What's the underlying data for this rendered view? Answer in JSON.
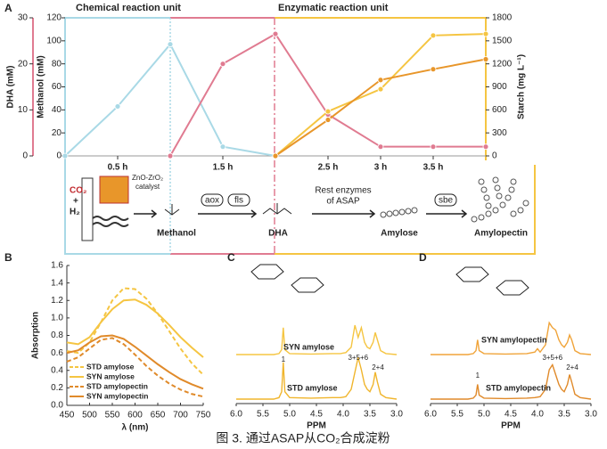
{
  "caption": "图 3. 通过ASAP从CO₂合成淀粉",
  "scheme": {
    "reactant_1": "CO₂",
    "plus": "+",
    "reactant_2": "H₂",
    "catalyst": "ZnO-ZrO₂",
    "catalyst_note": "catalyst",
    "methanol": "Methanol",
    "enzyme_1": "aox",
    "enzyme_2": "fls",
    "dha": "DHA",
    "rest_enzymes_1": "Rest enzymes",
    "rest_enzymes_2": "of ASAP",
    "amylose": "Amylose",
    "enzyme_3": "sbe",
    "amylopectin": "Amylopectin"
  },
  "chart_data": [
    {
      "type": "multiaxis",
      "panel": "A",
      "annotations": [
        "Chemical reaction unit",
        "Enzymatic reaction unit"
      ],
      "xlim": [
        0,
        4
      ],
      "xticks": [
        {
          "value": 0.5,
          "label": "0.5 h"
        },
        {
          "value": 1.5,
          "label": "1.5 h"
        },
        {
          "value": 2.5,
          "label": "2.5 h"
        },
        {
          "value": 3,
          "label": "3 h"
        },
        {
          "value": 3.5,
          "label": "3.5 h"
        }
      ],
      "ylabel": "Methanol (mM)",
      "ylim": [
        0,
        120
      ],
      "yticks": [
        0,
        20,
        40,
        60,
        80,
        100,
        120
      ],
      "y3label": "DHA (mM)",
      "y3lim": [
        0,
        30
      ],
      "y3ticks": [
        0,
        10,
        20,
        30
      ],
      "y2label": "Starch (mg L⁻¹)",
      "y2lim": [
        0,
        1800
      ],
      "y2ticks": [
        0,
        300,
        600,
        900,
        1200,
        1500,
        1800
      ],
      "series": [
        {
          "color": "#a9d9e6",
          "axis": "y",
          "x": [
            0,
            0.5,
            1,
            1.5,
            2
          ],
          "values": [
            0,
            43,
            97,
            8,
            0
          ]
        },
        {
          "color": "#e07b91",
          "axis": "y3",
          "x": [
            1,
            1.5,
            2,
            2.5,
            3,
            3.5,
            4
          ],
          "values": [
            0,
            20,
            26.5,
            9,
            2,
            2,
            2
          ]
        },
        {
          "color": "#f5c542",
          "axis": "y2",
          "x": [
            2,
            2.5,
            3,
            3.5,
            4
          ],
          "values": [
            0,
            580,
            870,
            1570,
            1590
          ]
        },
        {
          "color": "#e8962a",
          "axis": "y2",
          "x": [
            2,
            2.5,
            3,
            3.5,
            4
          ],
          "values": [
            0,
            470,
            990,
            1130,
            1260
          ]
        }
      ]
    },
    {
      "type": "line",
      "panel": "B",
      "xlabel": "λ (nm)",
      "ylabel": "Absorption",
      "xlim": [
        450,
        750
      ],
      "xticks": [
        450,
        500,
        550,
        600,
        650,
        700,
        750
      ],
      "ylim": [
        0,
        1.6
      ],
      "yticks": [
        {
          "value": 0,
          "label": "0.0"
        },
        0.2,
        0.4,
        0.6,
        0.8,
        {
          "value": 1,
          "label": "1.0"
        },
        1.2,
        1.4,
        1.6
      ],
      "legend": "lower left",
      "x": [
        450,
        475,
        500,
        525,
        550,
        575,
        600,
        625,
        650,
        675,
        700,
        725,
        750
      ],
      "series": [
        {
          "name": "STD amylose",
          "color": "#f5c542",
          "dashed": true,
          "values": [
            0.62,
            0.6,
            0.72,
            0.95,
            1.2,
            1.34,
            1.33,
            1.22,
            1.05,
            0.85,
            0.65,
            0.48,
            0.35
          ]
        },
        {
          "name": "SYN amylose",
          "color": "#f5c542",
          "dashed": false,
          "values": [
            0.72,
            0.7,
            0.78,
            0.95,
            1.1,
            1.2,
            1.21,
            1.15,
            1.05,
            0.92,
            0.78,
            0.66,
            0.55
          ]
        },
        {
          "name": "STD amylopectin",
          "color": "#e08a2a",
          "dashed": true,
          "values": [
            0.5,
            0.55,
            0.65,
            0.75,
            0.77,
            0.7,
            0.58,
            0.45,
            0.34,
            0.25,
            0.18,
            0.13,
            0.1
          ]
        },
        {
          "name": "SYN amylopectin",
          "color": "#e08a2a",
          "dashed": false,
          "values": [
            0.6,
            0.63,
            0.72,
            0.79,
            0.8,
            0.76,
            0.67,
            0.57,
            0.47,
            0.38,
            0.3,
            0.24,
            0.19
          ]
        }
      ]
    },
    {
      "type": "spectrum",
      "panel": "C",
      "xlabel": "PPM",
      "xlim": [
        6,
        3
      ],
      "xticks": [
        {
          "value": 6,
          "label": "6.0"
        },
        5.5,
        {
          "value": 5,
          "label": "5.0"
        },
        4.5,
        {
          "value": 4,
          "label": "4.0"
        },
        3.5,
        {
          "value": 3,
          "label": "3.0"
        }
      ],
      "annotations": [
        "1",
        "3+5+6",
        "2+4"
      ],
      "x": [
        6,
        5.6,
        5.3,
        5.2,
        5.15,
        5.12,
        5.09,
        5,
        4.6,
        4.2,
        4.05,
        4,
        3.95,
        3.85,
        3.78,
        3.72,
        3.66,
        3.6,
        3.55,
        3.5,
        3.44,
        3.4,
        3.36,
        3.3,
        3.2,
        3
      ],
      "series": [
        {
          "name": "SYN amylose",
          "color": "#f5c542",
          "values": [
            0,
            0,
            0,
            0.02,
            0.1,
            0.55,
            0.1,
            0.02,
            0.01,
            0.02,
            0.02,
            0.03,
            0.04,
            0.15,
            0.6,
            0.35,
            0.55,
            0.25,
            0.15,
            0.12,
            0.25,
            0.45,
            0.3,
            0.08,
            0.02,
            0
          ]
        },
        {
          "name": "STD amylose",
          "color": "#f0b52c",
          "values": [
            0,
            0,
            0,
            0.03,
            0.15,
            0.75,
            0.15,
            0.03,
            0.02,
            0.03,
            0.03,
            0.04,
            0.05,
            0.2,
            0.55,
            0.85,
            0.6,
            0.3,
            0.2,
            0.15,
            0.3,
            0.55,
            0.35,
            0.1,
            0.03,
            0
          ]
        }
      ]
    },
    {
      "type": "spectrum",
      "panel": "D",
      "xlabel": "PPM",
      "xlim": [
        6,
        3
      ],
      "xticks": [
        {
          "value": 6,
          "label": "6.0"
        },
        5.5,
        {
          "value": 5,
          "label": "5.0"
        },
        4.5,
        {
          "value": 4,
          "label": "4.0"
        },
        3.5,
        {
          "value": 3,
          "label": "3.0"
        }
      ],
      "annotations": [
        "1",
        "3+5+6",
        "2+4"
      ],
      "x": [
        6,
        5.6,
        5.3,
        5.2,
        5.15,
        5.12,
        5.09,
        5,
        4.6,
        4.2,
        4.05,
        4,
        3.95,
        3.85,
        3.78,
        3.72,
        3.66,
        3.6,
        3.55,
        3.5,
        3.44,
        3.4,
        3.36,
        3.3,
        3.2,
        3
      ],
      "series": [
        {
          "name": "SYN amylopectin",
          "color": "#f0a43a",
          "values": [
            0,
            0,
            0,
            0.02,
            0.08,
            0.3,
            0.08,
            0.02,
            0.01,
            0.02,
            0.05,
            0.12,
            0.05,
            0.2,
            0.65,
            0.55,
            0.5,
            0.3,
            0.2,
            0.15,
            0.25,
            0.4,
            0.3,
            0.08,
            0.02,
            0
          ]
        },
        {
          "name": "STD amylopectin",
          "color": "#e08a2a",
          "values": [
            0,
            0,
            0,
            0.02,
            0.08,
            0.3,
            0.08,
            0.02,
            0.01,
            0.02,
            0.03,
            0.04,
            0.05,
            0.2,
            0.6,
            0.7,
            0.5,
            0.3,
            0.2,
            0.15,
            0.3,
            0.5,
            0.35,
            0.1,
            0.03,
            0
          ]
        }
      ]
    }
  ]
}
